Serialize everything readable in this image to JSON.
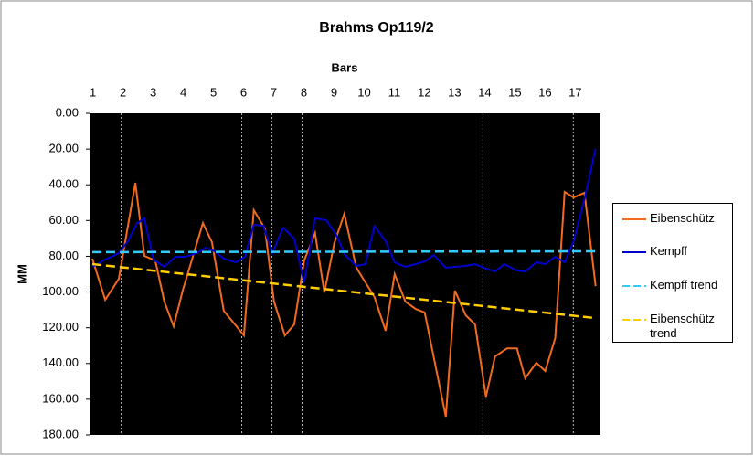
{
  "chart_data": {
    "type": "line",
    "title": "Brahms Op119/2",
    "xlabel": "Bars",
    "ylabel": "MM",
    "xlim": [
      0.95,
      17.9
    ],
    "xticks": [
      1,
      2,
      3,
      4,
      5,
      6,
      7,
      8,
      9,
      10,
      11,
      12,
      13,
      14,
      15,
      16,
      17
    ],
    "xgrid": [
      2,
      6,
      7,
      8,
      14,
      17
    ],
    "ylim": [
      0,
      180
    ],
    "y_inverted": true,
    "yticks": [
      {
        "value": 0,
        "label": "0.00"
      },
      {
        "value": 20,
        "label": "20.00"
      },
      {
        "value": 40,
        "label": "40.00"
      },
      {
        "value": 60,
        "label": "60.00"
      },
      {
        "value": 80,
        "label": "80.00"
      },
      {
        "value": 100,
        "label": "100.00"
      },
      {
        "value": 120,
        "label": "120.00"
      },
      {
        "value": 140,
        "label": "140.00"
      },
      {
        "value": 160,
        "label": "160.00"
      },
      {
        "value": 180,
        "label": "180.00"
      }
    ],
    "background": "#000000",
    "series": [
      {
        "name": "Eibenschütz",
        "color": "#f26b1d",
        "dash": false,
        "x": [
          1.04,
          1.47,
          1.92,
          2.47,
          2.77,
          3.13,
          3.43,
          3.74,
          4.04,
          4.71,
          5.01,
          5.4,
          6.07,
          6.4,
          6.77,
          7.07,
          7.43,
          7.74,
          8.07,
          8.43,
          8.74,
          9.07,
          9.4,
          9.8,
          10.4,
          10.77,
          11.07,
          11.43,
          11.77,
          12.07,
          12.77,
          13.07,
          13.43,
          13.74,
          14.1,
          14.4,
          14.8,
          15.13,
          15.4,
          15.77,
          16.07,
          16.4,
          16.71,
          17.01,
          17.37,
          17.74
        ],
        "values": [
          81.3,
          104.3,
          92.6,
          38.9,
          79.8,
          82.4,
          105.4,
          119.2,
          99.2,
          61.4,
          72.1,
          110.5,
          124.3,
          54.2,
          64.5,
          105.4,
          124.3,
          118.2,
          82.4,
          67.0,
          100.3,
          72.6,
          56.3,
          86.4,
          102.8,
          121.7,
          90.0,
          105.4,
          109.5,
          111.5,
          169.8,
          99.2,
          113.0,
          118.2,
          158.6,
          136.1,
          131.5,
          131.5,
          148.3,
          139.6,
          144.2,
          125.8,
          44.0,
          47.1,
          44.5,
          96.7
        ]
      },
      {
        "name": "Kempff",
        "color": "#0000cc",
        "dash": false,
        "x": [
          1.04,
          1.47,
          1.92,
          2.22,
          2.53,
          2.77,
          3.07,
          3.43,
          3.8,
          4.13,
          4.5,
          4.8,
          5.1,
          5.4,
          5.8,
          6.1,
          6.4,
          6.71,
          7.01,
          7.37,
          7.74,
          8.07,
          8.43,
          8.8,
          9.13,
          9.43,
          9.8,
          10.1,
          10.4,
          10.77,
          11.07,
          11.43,
          11.77,
          12.07,
          12.37,
          12.77,
          13.07,
          13.43,
          13.74,
          14.1,
          14.4,
          14.71,
          15.13,
          15.4,
          15.77,
          16.07,
          16.4,
          16.71,
          17.01,
          17.37,
          17.74
        ],
        "values": [
          85.9,
          81.8,
          78.3,
          71.6,
          61.4,
          58.8,
          81.8,
          85.9,
          80.3,
          80.3,
          78.3,
          75.2,
          77.2,
          81.3,
          83.4,
          80.3,
          62.4,
          62.9,
          78.3,
          64.0,
          70.1,
          94.6,
          58.8,
          59.8,
          68.0,
          79.3,
          85.4,
          84.4,
          63.0,
          71.6,
          83.4,
          85.9,
          84.4,
          82.9,
          79.3,
          86.4,
          85.9,
          85.4,
          84.4,
          86.9,
          88.5,
          84.4,
          88.0,
          88.5,
          83.4,
          84.4,
          80.3,
          83.4,
          71.6,
          48.1,
          19.9
        ]
      },
      {
        "name": "Kempff trend",
        "color": "#33ccff",
        "dash": true,
        "x": [
          1.04,
          17.74
        ],
        "values": [
          77.7,
          77.2
        ]
      },
      {
        "name": "Eibenschütz trend",
        "color": "#ffcc00",
        "dash": true,
        "x": [
          1.04,
          17.74
        ],
        "values": [
          84.4,
          114.6
        ]
      }
    ]
  }
}
